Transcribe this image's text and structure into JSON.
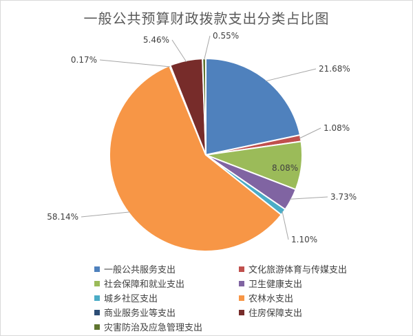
{
  "chart_data": {
    "type": "pie",
    "title": "一般公共预算财政拨款支出分类占比图",
    "slices": [
      {
        "name": "一般公共服务支出",
        "value": 21.68,
        "label": "21.68%",
        "color": "#4f81bd"
      },
      {
        "name": "文化旅游体育与传媒支出",
        "value": 1.08,
        "label": "1.08%",
        "color": "#c0504d"
      },
      {
        "name": "社会保障和就业支出",
        "value": 8.08,
        "label": "8.08%",
        "color": "#9bbb59"
      },
      {
        "name": "卫生健康支出",
        "value": 3.73,
        "label": "3.73%",
        "color": "#8064a2"
      },
      {
        "name": "城乡社区支出",
        "value": 1.1,
        "label": "1.10%",
        "color": "#4bacc6"
      },
      {
        "name": "农林水支出",
        "value": 58.14,
        "label": "58.14%",
        "color": "#f79646"
      },
      {
        "name": "商业服务业等支出",
        "value": 0.17,
        "label": "0.17%",
        "color": "#2c4d75"
      },
      {
        "name": "住房保障支出",
        "value": 5.46,
        "label": "5.46%",
        "color": "#772c2a"
      },
      {
        "name": "灾害防治及应急管理支出",
        "value": 0.55,
        "label": "0.55%",
        "color": "#5f7530"
      }
    ],
    "legend_position": "bottom"
  }
}
